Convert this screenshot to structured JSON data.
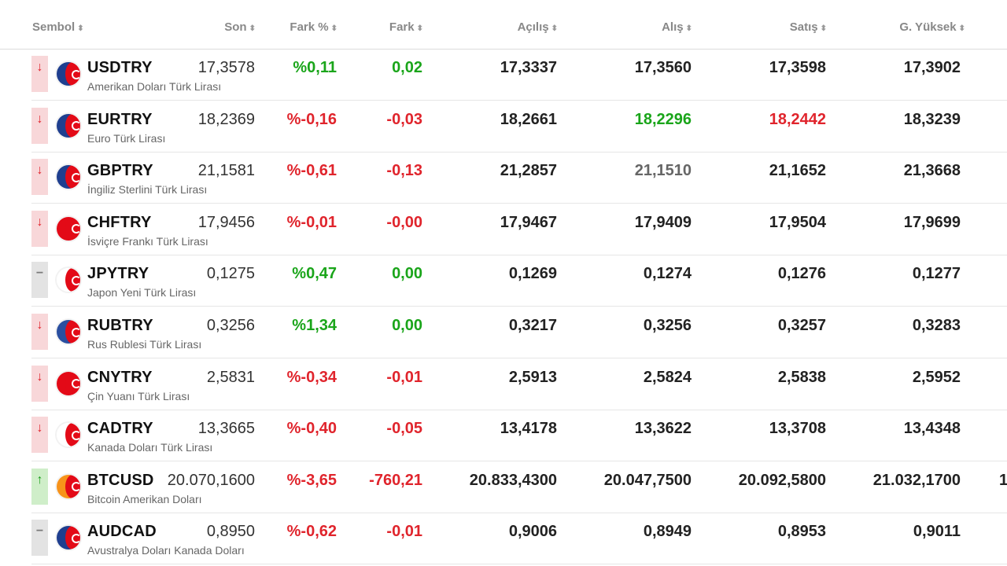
{
  "headers": {
    "sembol": "Sembol",
    "son": "Son",
    "fark_pct": "Fark %",
    "fark": "Fark",
    "acilis": "Açılış",
    "alis": "Alış",
    "satis": "Satış",
    "g_yuksek": "G. Yüksek",
    "sort_glyph": "⬍"
  },
  "rows": [
    {
      "symbol": "USDTRY",
      "desc": "Amerikan Doları Türk Lirası",
      "direction": "down",
      "dir_glyph": "↓",
      "flag": "us",
      "son": "17,3578",
      "fark_pct": "%0,11",
      "fark": "0,02",
      "acilis": "17,3337",
      "alis": "17,3560",
      "satis": "17,3598",
      "g_yuksek": "17,3902",
      "change_color": "green",
      "alis_color": "",
      "satis_color": ""
    },
    {
      "symbol": "EURTRY",
      "desc": "Euro Türk Lirası",
      "direction": "down",
      "dir_glyph": "↓",
      "flag": "eu",
      "son": "18,2369",
      "fark_pct": "%-0,16",
      "fark": "-0,03",
      "acilis": "18,2661",
      "alis": "18,2296",
      "satis": "18,2442",
      "g_yuksek": "18,3239",
      "change_color": "red",
      "alis_color": "green",
      "satis_color": "red"
    },
    {
      "symbol": "GBPTRY",
      "desc": "İngiliz Sterlini Türk Lirası",
      "direction": "down",
      "dir_glyph": "↓",
      "flag": "gb",
      "son": "21,1581",
      "fark_pct": "%-0,61",
      "fark": "-0,13",
      "acilis": "21,2857",
      "alis": "21,1510",
      "satis": "21,1652",
      "g_yuksek": "21,3668",
      "change_color": "red",
      "alis_color": "gray",
      "satis_color": ""
    },
    {
      "symbol": "CHFTRY",
      "desc": "İsviçre Frankı Türk Lirası",
      "direction": "down",
      "dir_glyph": "↓",
      "flag": "ch",
      "son": "17,9456",
      "fark_pct": "%-0,01",
      "fark": "-0,00",
      "acilis": "17,9467",
      "alis": "17,9409",
      "satis": "17,9504",
      "g_yuksek": "17,9699",
      "change_color": "red",
      "alis_color": "",
      "satis_color": ""
    },
    {
      "symbol": "JPYTRY",
      "desc": "Japon Yeni Türk Lirası",
      "direction": "flat",
      "dir_glyph": "−",
      "flag": "jp",
      "son": "0,1275",
      "fark_pct": "%0,47",
      "fark": "0,00",
      "acilis": "0,1269",
      "alis": "0,1274",
      "satis": "0,1276",
      "g_yuksek": "0,1277",
      "change_color": "green",
      "alis_color": "",
      "satis_color": ""
    },
    {
      "symbol": "RUBTRY",
      "desc": "Rus Rublesi Türk Lirası",
      "direction": "down",
      "dir_glyph": "↓",
      "flag": "ru",
      "son": "0,3256",
      "fark_pct": "%1,34",
      "fark": "0,00",
      "acilis": "0,3217",
      "alis": "0,3256",
      "satis": "0,3257",
      "g_yuksek": "0,3283",
      "change_color": "green",
      "alis_color": "",
      "satis_color": ""
    },
    {
      "symbol": "CNYTRY",
      "desc": "Çin Yuanı Türk Lirası",
      "direction": "down",
      "dir_glyph": "↓",
      "flag": "cn",
      "son": "2,5831",
      "fark_pct": "%-0,34",
      "fark": "-0,01",
      "acilis": "2,5913",
      "alis": "2,5824",
      "satis": "2,5838",
      "g_yuksek": "2,5952",
      "change_color": "red",
      "alis_color": "",
      "satis_color": ""
    },
    {
      "symbol": "CADTRY",
      "desc": "Kanada Doları Türk Lirası",
      "direction": "down",
      "dir_glyph": "↓",
      "flag": "ca",
      "son": "13,3665",
      "fark_pct": "%-0,40",
      "fark": "-0,05",
      "acilis": "13,4178",
      "alis": "13,3622",
      "satis": "13,3708",
      "g_yuksek": "13,4348",
      "change_color": "red",
      "alis_color": "",
      "satis_color": ""
    },
    {
      "symbol": "BTCUSD",
      "desc": "Bitcoin Amerikan Doları",
      "direction": "up",
      "dir_glyph": "↑",
      "flag": "btc",
      "son": "20.070,1600",
      "fark_pct": "%-3,65",
      "fark": "-760,21",
      "acilis": "20.833,4300",
      "alis": "20.047,7500",
      "satis": "20.092,5800",
      "g_yuksek": "21.032,1700",
      "change_color": "red",
      "alis_color": "",
      "satis_color": "",
      "overflow": "1"
    },
    {
      "symbol": "AUDCAD",
      "desc": "Avustralya Doları Kanada Doları",
      "direction": "flat",
      "dir_glyph": "−",
      "flag": "au",
      "son": "0,8950",
      "fark_pct": "%-0,62",
      "fark": "-0,01",
      "acilis": "0,9006",
      "alis": "0,8949",
      "satis": "0,8953",
      "g_yuksek": "0,9011",
      "change_color": "red",
      "alis_color": "",
      "satis_color": ""
    }
  ],
  "flag_colors": {
    "us": "#1f3f8f",
    "eu": "#1f3f8f",
    "gb": "#1f3f8f",
    "ch": "#e30a17",
    "jp": "#ffffff",
    "ru": "#2a4fa0",
    "cn": "#e30a17",
    "ca": "#ffffff",
    "btc": "#f7931a",
    "au": "#1f3f8f"
  }
}
